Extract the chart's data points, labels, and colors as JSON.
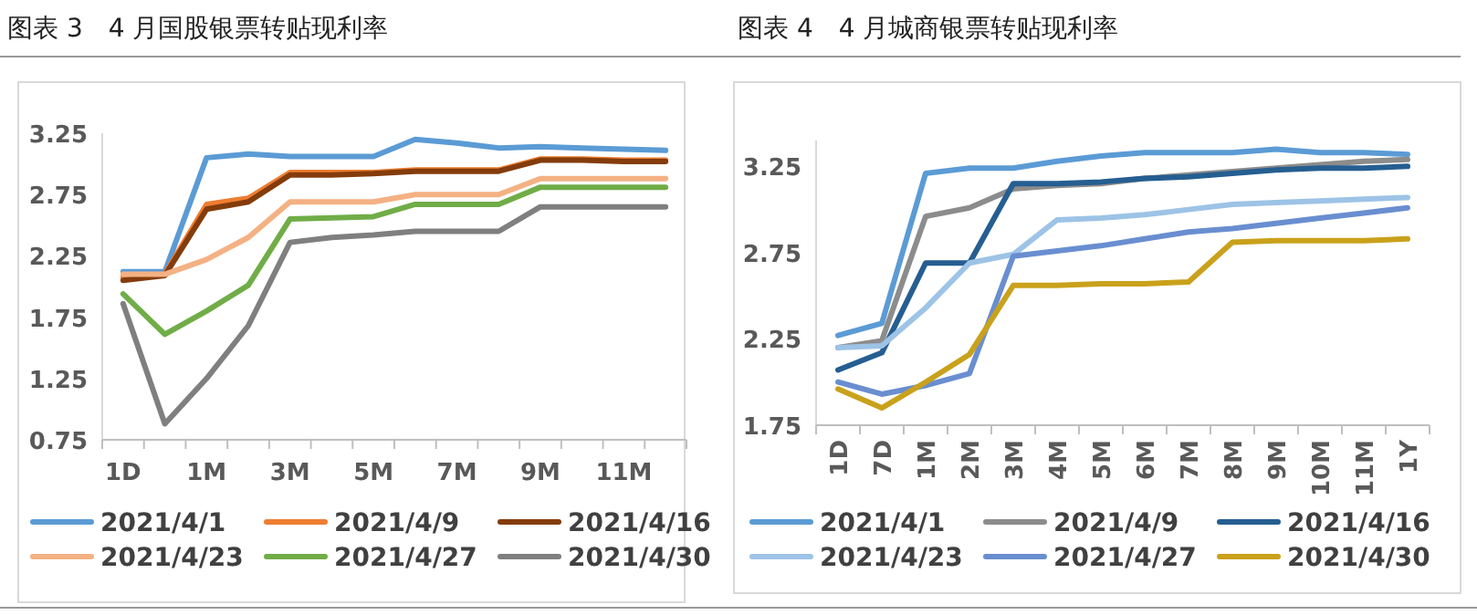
{
  "chart_data": [
    {
      "type": "line",
      "title": "图表 3　4 月国股银票转贴现利率",
      "categories": [
        "1D",
        null,
        "1M",
        null,
        "3M",
        null,
        "5M",
        null,
        "7M",
        null,
        "9M",
        null,
        "11M",
        null
      ],
      "ylim": [
        0.75,
        3.25
      ],
      "yticks": [
        0.75,
        1.25,
        1.75,
        2.25,
        2.75,
        3.25
      ],
      "grid": false,
      "legend": "bottom",
      "series": [
        {
          "name": "2021/4/1",
          "color": "#5b9bd5",
          "values": [
            2.12,
            2.12,
            3.05,
            3.08,
            3.06,
            3.06,
            3.06,
            3.2,
            3.17,
            3.13,
            3.14,
            3.13,
            3.12,
            3.11
          ]
        },
        {
          "name": "2021/4/9",
          "color": "#ed7d31",
          "values": [
            2.08,
            2.1,
            2.67,
            2.72,
            2.93,
            2.93,
            2.93,
            2.95,
            2.95,
            2.95,
            3.04,
            3.04,
            3.03,
            3.03
          ]
        },
        {
          "name": "2021/4/16",
          "color": "#843c0c",
          "values": [
            2.05,
            2.09,
            2.63,
            2.69,
            2.91,
            2.91,
            2.92,
            2.94,
            2.94,
            2.94,
            3.03,
            3.03,
            3.02,
            3.02
          ]
        },
        {
          "name": "2021/4/23",
          "color": "#f4b183",
          "values": [
            2.1,
            2.1,
            2.22,
            2.4,
            2.69,
            2.69,
            2.69,
            2.75,
            2.75,
            2.75,
            2.88,
            2.88,
            2.88,
            2.88
          ]
        },
        {
          "name": "2021/4/27",
          "color": "#70ad47",
          "values": [
            1.94,
            1.61,
            1.8,
            2.01,
            2.55,
            2.56,
            2.57,
            2.67,
            2.67,
            2.67,
            2.81,
            2.81,
            2.81,
            2.81
          ]
        },
        {
          "name": "2021/4/30",
          "color": "#7f7f7f",
          "values": [
            1.86,
            0.88,
            1.25,
            1.68,
            2.36,
            2.4,
            2.42,
            2.45,
            2.45,
            2.45,
            2.65,
            2.65,
            2.65,
            2.65
          ]
        }
      ]
    },
    {
      "type": "line",
      "title": "图表 4　4 月城商银票转贴现利率",
      "categories": [
        "1D",
        "7D",
        "1M",
        "2M",
        "3M",
        "4M",
        "5M",
        "6M",
        "7M",
        "8M",
        "9M",
        "10M",
        "11M",
        "1Y"
      ],
      "ylim": [
        1.75,
        3.4
      ],
      "yticks": [
        1.75,
        2.25,
        2.75,
        3.25
      ],
      "grid": false,
      "legend": "bottom",
      "series": [
        {
          "name": "2021/4/1",
          "color": "#5b9bd5",
          "values": [
            2.27,
            2.34,
            3.21,
            3.24,
            3.24,
            3.28,
            3.31,
            3.33,
            3.33,
            3.33,
            3.35,
            3.33,
            3.33,
            3.32
          ]
        },
        {
          "name": "2021/4/9",
          "color": "#8c8c8c",
          "values": [
            2.2,
            2.24,
            2.96,
            3.01,
            3.12,
            3.14,
            3.15,
            3.18,
            3.2,
            3.22,
            3.24,
            3.26,
            3.28,
            3.29
          ]
        },
        {
          "name": "2021/4/16",
          "color": "#255e91",
          "values": [
            2.07,
            2.17,
            2.69,
            2.69,
            3.15,
            3.15,
            3.16,
            3.18,
            3.19,
            3.21,
            3.23,
            3.24,
            3.24,
            3.25
          ]
        },
        {
          "name": "2021/4/23",
          "color": "#9dc3e6",
          "values": [
            2.2,
            2.21,
            2.43,
            2.69,
            2.74,
            2.94,
            2.95,
            2.97,
            3.0,
            3.03,
            3.04,
            3.05,
            3.06,
            3.07
          ]
        },
        {
          "name": "2021/4/27",
          "color": "#698ed0",
          "values": [
            2.0,
            1.93,
            1.98,
            2.05,
            2.73,
            2.76,
            2.79,
            2.83,
            2.87,
            2.89,
            2.92,
            2.95,
            2.98,
            3.01
          ]
        },
        {
          "name": "2021/4/30",
          "color": "#c9a11b",
          "values": [
            1.96,
            1.85,
            2.0,
            2.16,
            2.56,
            2.56,
            2.57,
            2.57,
            2.58,
            2.81,
            2.82,
            2.82,
            2.82,
            2.83
          ]
        }
      ]
    }
  ]
}
